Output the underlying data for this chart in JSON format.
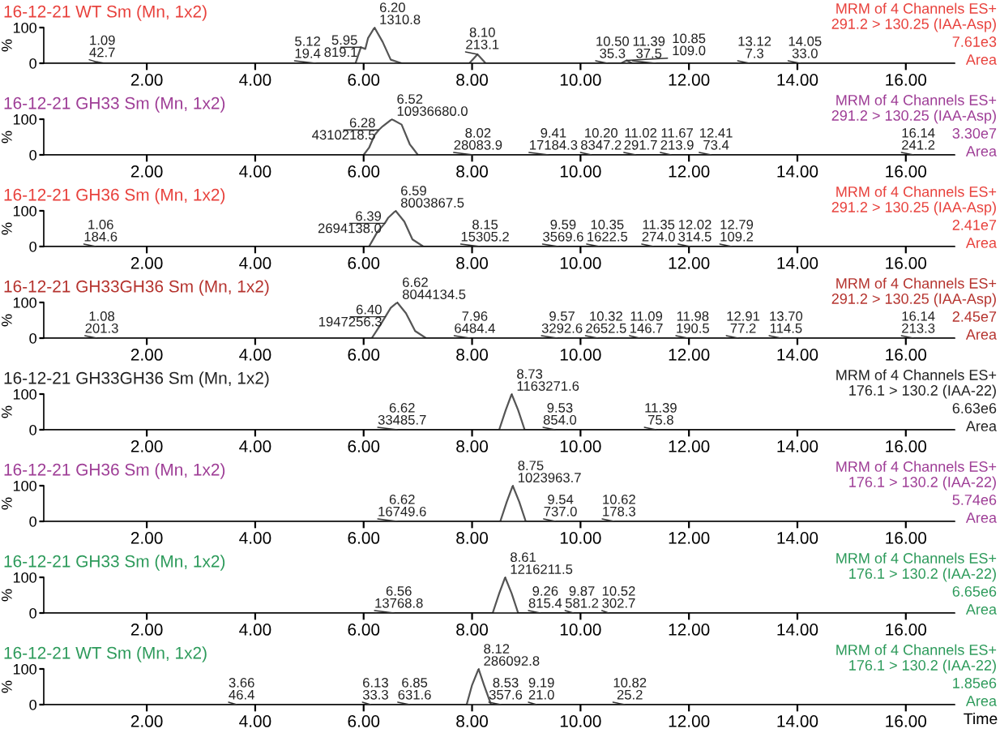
{
  "chart_data": [
    {
      "type": "line",
      "title": "16-12-21 WT Sm (Mn, 1x2)",
      "ylabel": "%",
      "xlim": [
        0.1,
        16.9
      ],
      "ylim": [
        0,
        100
      ],
      "yticks": [
        0,
        100
      ],
      "xticks": [
        {
          "value": 2,
          "label": "2.00"
        },
        {
          "value": 4,
          "label": "4.00"
        },
        {
          "value": 6,
          "label": "6.00"
        },
        {
          "value": 8,
          "label": "8.00"
        },
        {
          "value": 10,
          "label": "10.00"
        },
        {
          "value": 12,
          "label": "12.00"
        },
        {
          "value": 14,
          "label": "14.00"
        },
        {
          "value": 16,
          "label": "16.00"
        }
      ],
      "series": [
        {
          "color": "#555555",
          "x": [
            0.1,
            1.0,
            1.09,
            1.2,
            5.85,
            5.95,
            6.03,
            6.08,
            6.2,
            6.35,
            6.5,
            6.7,
            7.95,
            8.1,
            8.25,
            10.75,
            10.85,
            10.95,
            16.9
          ],
          "values": [
            0,
            0,
            3,
            0,
            0,
            45,
            40,
            70,
            100,
            60,
            10,
            0,
            0,
            25,
            0,
            0,
            8,
            0,
            0
          ]
        }
      ],
      "annotations": [
        "MRM of 4 Channels ES+",
        "291.2 > 130.25 (IAA-Asp)",
        "7.61e3",
        "Area",
        {
          "text": "1.09\n42.7",
          "x": 1.09,
          "y": 3
        },
        {
          "text": "5.12\n19.4",
          "x": 5.12,
          "y": 0
        },
        {
          "text": "5.95\n819.1",
          "x": 5.95,
          "y": 45
        },
        {
          "text": "6.20\n1310.8",
          "x": 6.2,
          "y": 100
        },
        {
          "text": "8.10\n213.1",
          "x": 8.1,
          "y": 25
        },
        {
          "text": "10.50\n35.3",
          "x": 10.5,
          "y": 0
        },
        {
          "text": "10.85\n109.0",
          "x": 10.85,
          "y": 8
        },
        {
          "text": "11.39\n37.5",
          "x": 11.39,
          "y": 0
        },
        {
          "text": "13.12\n7.3",
          "x": 13.12,
          "y": 0
        },
        {
          "text": "14.05\n33.0",
          "x": 14.05,
          "y": 0
        }
      ]
    },
    {
      "type": "line",
      "title": "16-12-21 GH33 Sm (Mn, 1x2)",
      "ylabel": "%",
      "xlim": [
        0.1,
        16.9
      ],
      "ylim": [
        0,
        100
      ],
      "yticks": [
        0,
        100
      ],
      "xticks": [
        {
          "value": 2,
          "label": "2.00"
        },
        {
          "value": 4,
          "label": "4.00"
        },
        {
          "value": 6,
          "label": "6.00"
        },
        {
          "value": 8,
          "label": "8.00"
        },
        {
          "value": 10,
          "label": "10.00"
        },
        {
          "value": 12,
          "label": "12.00"
        },
        {
          "value": 14,
          "label": "14.00"
        },
        {
          "value": 16,
          "label": "16.00"
        }
      ],
      "series": [
        {
          "color": "#555555",
          "x": [
            0.1,
            6.0,
            6.1,
            6.2,
            6.28,
            6.35,
            6.52,
            6.7,
            6.85,
            7.0,
            16.9
          ],
          "values": [
            0,
            0,
            20,
            55,
            70,
            80,
            100,
            85,
            30,
            0,
            0
          ]
        }
      ],
      "annotations": [
        "MRM of 4 Channels ES+",
        "291.2 > 130.25 (IAA-Asp)",
        "3.30e7",
        "Area",
        {
          "text": "6.28\n4310218.5",
          "x": 6.28,
          "y": 70
        },
        {
          "text": "6.52\n10936680.0",
          "x": 6.52,
          "y": 100
        },
        {
          "text": "8.02\n28083.9",
          "x": 8.02,
          "y": 0
        },
        {
          "text": "9.41\n17184.3",
          "x": 9.41,
          "y": 0
        },
        {
          "text": "10.20\n8347.2",
          "x": 10.2,
          "y": 0
        },
        {
          "text": "11.02\n291.7",
          "x": 11.02,
          "y": 0
        },
        {
          "text": "11.67\n213.9",
          "x": 11.67,
          "y": 0
        },
        {
          "text": "12.41\n73.4",
          "x": 12.41,
          "y": 0
        },
        {
          "text": "16.14\n241.2",
          "x": 16.14,
          "y": 0
        }
      ]
    },
    {
      "type": "line",
      "title": "16-12-21 GH36 Sm (Mn, 1x2)",
      "ylabel": "%",
      "xlim": [
        0.1,
        16.9
      ],
      "ylim": [
        0,
        100
      ],
      "yticks": [
        0,
        100
      ],
      "xticks": [
        {
          "value": 2,
          "label": "2.00"
        },
        {
          "value": 4,
          "label": "4.00"
        },
        {
          "value": 6,
          "label": "6.00"
        },
        {
          "value": 8,
          "label": "8.00"
        },
        {
          "value": 10,
          "label": "10.00"
        },
        {
          "value": 12,
          "label": "12.00"
        },
        {
          "value": 14,
          "label": "14.00"
        },
        {
          "value": 16,
          "label": "16.00"
        }
      ],
      "series": [
        {
          "color": "#555555",
          "x": [
            0.1,
            6.1,
            6.25,
            6.39,
            6.45,
            6.59,
            6.75,
            6.9,
            7.1,
            16.9
          ],
          "values": [
            0,
            0,
            40,
            65,
            80,
            100,
            70,
            20,
            0,
            0
          ]
        }
      ],
      "annotations": [
        "MRM of 4 Channels ES+",
        "291.2 > 130.25 (IAA-Asp)",
        "2.41e7",
        "Area",
        {
          "text": "1.06\n184.6",
          "x": 1.06,
          "y": 0
        },
        {
          "text": "6.39\n2694138.0",
          "x": 6.39,
          "y": 65
        },
        {
          "text": "6.59\n8003867.5",
          "x": 6.59,
          "y": 100
        },
        {
          "text": "8.15\n15305.2",
          "x": 8.15,
          "y": 0
        },
        {
          "text": "9.59\n3569.6",
          "x": 9.59,
          "y": 0
        },
        {
          "text": "10.35\n1622.5",
          "x": 10.35,
          "y": 0
        },
        {
          "text": "11.35\n274.0",
          "x": 11.35,
          "y": 0
        },
        {
          "text": "12.02\n314.5",
          "x": 12.02,
          "y": 0
        },
        {
          "text": "12.79\n109.2",
          "x": 12.79,
          "y": 0
        }
      ]
    },
    {
      "type": "line",
      "title": "16-12-21 GH33GH36 Sm (Mn, 1x2)",
      "ylabel": "%",
      "xlim": [
        0.1,
        16.9
      ],
      "ylim": [
        0,
        100
      ],
      "yticks": [
        0,
        100
      ],
      "xticks": [
        {
          "value": 2,
          "label": "2.00"
        },
        {
          "value": 4,
          "label": "4.00"
        },
        {
          "value": 6,
          "label": "6.00"
        },
        {
          "value": 8,
          "label": "8.00"
        },
        {
          "value": 10,
          "label": "10.00"
        },
        {
          "value": 12,
          "label": "12.00"
        },
        {
          "value": 14,
          "label": "14.00"
        },
        {
          "value": 16,
          "label": "16.00"
        }
      ],
      "series": [
        {
          "color": "#555555",
          "x": [
            0.1,
            6.15,
            6.3,
            6.4,
            6.5,
            6.62,
            6.78,
            6.95,
            7.15,
            16.9
          ],
          "values": [
            0,
            0,
            35,
            60,
            85,
            100,
            70,
            20,
            0,
            0
          ]
        }
      ],
      "annotations": [
        "MRM of 4 Channels ES+",
        "291.2 > 130.25 (IAA-Asp)",
        "2.45e7",
        "Area",
        {
          "text": "1.08\n201.3",
          "x": 1.08,
          "y": 0
        },
        {
          "text": "6.40\n1947256.3",
          "x": 6.4,
          "y": 60
        },
        {
          "text": "6.62\n8044134.5",
          "x": 6.62,
          "y": 100
        },
        {
          "text": "7.96\n6484.4",
          "x": 7.96,
          "y": 0
        },
        {
          "text": "9.57\n3292.6",
          "x": 9.57,
          "y": 0
        },
        {
          "text": "10.32\n2652.5",
          "x": 10.32,
          "y": 0
        },
        {
          "text": "11.09\n146.7",
          "x": 11.09,
          "y": 0
        },
        {
          "text": "11.98\n190.5",
          "x": 11.98,
          "y": 0
        },
        {
          "text": "12.91\n77.2",
          "x": 12.91,
          "y": 0
        },
        {
          "text": "13.70\n114.5",
          "x": 13.7,
          "y": 0
        },
        {
          "text": "16.14\n213.3",
          "x": 16.14,
          "y": 0
        }
      ]
    },
    {
      "type": "line",
      "title": "16-12-21 GH33GH36 Sm (Mn, 1x2)",
      "ylabel": "%",
      "xlim": [
        0.1,
        16.9
      ],
      "ylim": [
        0,
        100
      ],
      "yticks": [
        0,
        100
      ],
      "xticks": [
        {
          "value": 2,
          "label": "2.00"
        },
        {
          "value": 4,
          "label": "4.00"
        },
        {
          "value": 6,
          "label": "6.00"
        },
        {
          "value": 8,
          "label": "8.00"
        },
        {
          "value": 10,
          "label": "10.00"
        },
        {
          "value": 12,
          "label": "12.00"
        },
        {
          "value": 14,
          "label": "14.00"
        },
        {
          "value": 16,
          "label": "16.00"
        }
      ],
      "series": [
        {
          "color": "#555555",
          "x": [
            0.1,
            8.5,
            8.62,
            8.73,
            8.85,
            8.97,
            16.9
          ],
          "values": [
            0,
            0,
            55,
            100,
            55,
            0,
            0
          ]
        }
      ],
      "annotations": [
        "MRM of 4 Channels ES+",
        "176.1 > 130.2 (IAA-22)",
        "6.63e6",
        "Area",
        {
          "text": "6.62\n33485.7",
          "x": 6.62,
          "y": 0
        },
        {
          "text": "8.73\n1163271.6",
          "x": 8.73,
          "y": 100
        },
        {
          "text": "9.53\n854.0",
          "x": 9.53,
          "y": 0
        },
        {
          "text": "11.39\n75.8",
          "x": 11.39,
          "y": 0
        }
      ]
    },
    {
      "type": "line",
      "title": "16-12-21 GH36 Sm (Mn, 1x2)",
      "ylabel": "%",
      "xlim": [
        0.1,
        16.9
      ],
      "ylim": [
        0,
        100
      ],
      "yticks": [
        0,
        100
      ],
      "xticks": [
        {
          "value": 2,
          "label": "2.00"
        },
        {
          "value": 4,
          "label": "4.00"
        },
        {
          "value": 6,
          "label": "6.00"
        },
        {
          "value": 8,
          "label": "8.00"
        },
        {
          "value": 10,
          "label": "10.00"
        },
        {
          "value": 12,
          "label": "12.00"
        },
        {
          "value": 14,
          "label": "14.00"
        },
        {
          "value": 16,
          "label": "16.00"
        }
      ],
      "series": [
        {
          "color": "#555555",
          "x": [
            0.1,
            8.52,
            8.64,
            8.75,
            8.87,
            8.99,
            16.9
          ],
          "values": [
            0,
            0,
            55,
            100,
            55,
            0,
            0
          ]
        }
      ],
      "annotations": [
        "MRM of 4 Channels ES+",
        "176.1 > 130.2 (IAA-22)",
        "5.74e6",
        "Area",
        {
          "text": "6.62\n16749.6",
          "x": 6.62,
          "y": 0
        },
        {
          "text": "8.75\n1023963.7",
          "x": 8.75,
          "y": 100
        },
        {
          "text": "9.54\n737.0",
          "x": 9.54,
          "y": 0
        },
        {
          "text": "10.62\n178.3",
          "x": 10.62,
          "y": 0
        }
      ]
    },
    {
      "type": "line",
      "title": "16-12-21 GH33 Sm (Mn, 1x2)",
      "ylabel": "%",
      "xlim": [
        0.1,
        16.9
      ],
      "ylim": [
        0,
        100
      ],
      "yticks": [
        0,
        100
      ],
      "xticks": [
        {
          "value": 2,
          "label": "2.00"
        },
        {
          "value": 4,
          "label": "4.00"
        },
        {
          "value": 6,
          "label": "6.00"
        },
        {
          "value": 8,
          "label": "8.00"
        },
        {
          "value": 10,
          "label": "10.00"
        },
        {
          "value": 12,
          "label": "12.00"
        },
        {
          "value": 14,
          "label": "14.00"
        },
        {
          "value": 16,
          "label": "16.00"
        }
      ],
      "series": [
        {
          "color": "#555555",
          "x": [
            0.1,
            8.38,
            8.5,
            8.61,
            8.73,
            8.85,
            16.9
          ],
          "values": [
            0,
            0,
            55,
            100,
            55,
            0,
            0
          ]
        }
      ],
      "annotations": [
        "MRM of 4 Channels ES+",
        "176.1 > 130.2 (IAA-22)",
        "6.65e6",
        "Area",
        {
          "text": "6.56\n13768.8",
          "x": 6.56,
          "y": 0
        },
        {
          "text": "8.61\n1216211.5",
          "x": 8.61,
          "y": 100
        },
        {
          "text": "9.26\n815.4",
          "x": 9.26,
          "y": 0
        },
        {
          "text": "9.87\n581.2",
          "x": 9.87,
          "y": 0
        },
        {
          "text": "10.52\n302.7",
          "x": 10.52,
          "y": 0
        }
      ]
    },
    {
      "type": "line",
      "title": "16-12-21 WT Sm (Mn, 1x2)",
      "ylabel": "%",
      "xlabel": "Time",
      "xlim": [
        0.1,
        16.9
      ],
      "ylim": [
        0,
        100
      ],
      "yticks": [
        0,
        100
      ],
      "xticks": [
        {
          "value": 2,
          "label": "2.00"
        },
        {
          "value": 4,
          "label": "4.00"
        },
        {
          "value": 6,
          "label": "6.00"
        },
        {
          "value": 8,
          "label": "8.00"
        },
        {
          "value": 10,
          "label": "10.00"
        },
        {
          "value": 12,
          "label": "12.00"
        },
        {
          "value": 14,
          "label": "14.00"
        },
        {
          "value": 16,
          "label": "16.00"
        }
      ],
      "series": [
        {
          "color": "#555555",
          "x": [
            0.1,
            7.9,
            8.0,
            8.12,
            8.22,
            8.35,
            16.9
          ],
          "values": [
            0,
            0,
            55,
            100,
            55,
            0,
            0
          ]
        }
      ],
      "annotations": [
        "MRM of 4 Channels ES+",
        "176.1 > 130.2 (IAA-22)",
        "1.85e6",
        "Area",
        {
          "text": "3.66\n46.4",
          "x": 3.66,
          "y": 0
        },
        {
          "text": "6.13\n33.3",
          "x": 6.13,
          "y": 0
        },
        {
          "text": "6.85\n631.6",
          "x": 6.85,
          "y": 0
        },
        {
          "text": "8.12\n286092.8",
          "x": 8.12,
          "y": 100
        },
        {
          "text": "8.53\n357.6",
          "x": 8.53,
          "y": 0
        },
        {
          "text": "9.19\n21.0",
          "x": 9.19,
          "y": 0
        },
        {
          "text": "10.82\n25.2",
          "x": 10.82,
          "y": 0
        }
      ]
    }
  ]
}
